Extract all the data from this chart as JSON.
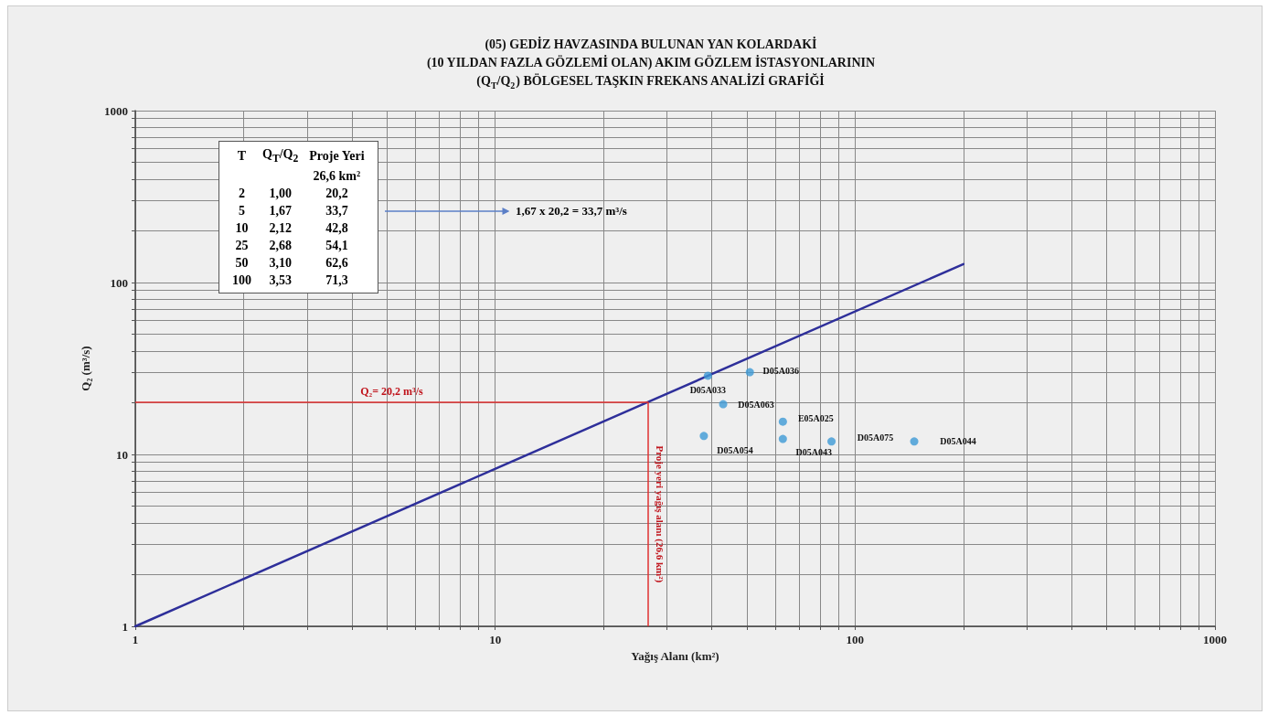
{
  "chart_data": {
    "type": "scatter",
    "title": "(05) GEDİZ HAVZASINDA BULUNAN YAN KOLARDAKİ\n(10 YILDAN FAZLA GÖZLEMİ OLAN) AKIM GÖZLEM İSTASYONLARININ\n(Q$_{T}$/Q$_{2}$) BÖLGESEL TAŞKIN FREKANS ANALİZİ GRAFİĞİ",
    "xlabel": "Yağış Alanı (km²)",
    "ylabel": "Q₂ (m³/s)",
    "log": "xy",
    "grid": true,
    "marker": "circle",
    "xlim": [
      1,
      1000
    ],
    "ylim": [
      1,
      1000
    ],
    "xticks": [
      1,
      {
        "value": 2,
        "label": null
      },
      {
        "value": 3,
        "label": null
      },
      {
        "value": 4,
        "label": null
      },
      {
        "value": 5,
        "label": null
      },
      {
        "value": 6,
        "label": null
      },
      {
        "value": 7,
        "label": null
      },
      {
        "value": 8,
        "label": null
      },
      {
        "value": 9,
        "label": null
      },
      10,
      {
        "value": 20,
        "label": null
      },
      {
        "value": 30,
        "label": null
      },
      {
        "value": 40,
        "label": null
      },
      {
        "value": 50,
        "label": null
      },
      {
        "value": 60,
        "label": null
      },
      {
        "value": 70,
        "label": null
      },
      {
        "value": 80,
        "label": null
      },
      {
        "value": 90,
        "label": null
      },
      100,
      {
        "value": 200,
        "label": null
      },
      {
        "value": 300,
        "label": null
      },
      {
        "value": 400,
        "label": null
      },
      {
        "value": 500,
        "label": null
      },
      {
        "value": 600,
        "label": null
      },
      {
        "value": 700,
        "label": null
      },
      {
        "value": 800,
        "label": null
      },
      {
        "value": 900,
        "label": null
      },
      1000
    ],
    "yticks": [
      1,
      {
        "value": 2,
        "label": null
      },
      {
        "value": 3,
        "label": null
      },
      {
        "value": 4,
        "label": null
      },
      {
        "value": 5,
        "label": null
      },
      {
        "value": 6,
        "label": null
      },
      {
        "value": 7,
        "label": null
      },
      {
        "value": 8,
        "label": null
      },
      {
        "value": 9,
        "label": null
      },
      10,
      {
        "value": 20,
        "label": null
      },
      {
        "value": 30,
        "label": null
      },
      {
        "value": 40,
        "label": null
      },
      {
        "value": 50,
        "label": null
      },
      {
        "value": 60,
        "label": null
      },
      {
        "value": 70,
        "label": null
      },
      {
        "value": 80,
        "label": null
      },
      {
        "value": 90,
        "label": null
      },
      100,
      {
        "value": 200,
        "label": null
      },
      {
        "value": 300,
        "label": null
      },
      {
        "value": 400,
        "label": null
      },
      {
        "value": 500,
        "label": null
      },
      {
        "value": 600,
        "label": null
      },
      {
        "value": 700,
        "label": null
      },
      {
        "value": 800,
        "label": null
      },
      {
        "value": 900,
        "label": null
      },
      1000
    ],
    "series": [
      {
        "type": "line",
        "color": "#2e2f9a",
        "marker": "none",
        "line_style": "solid",
        "x": [
          1,
          26.6,
          200
        ],
        "values": [
          1,
          20.2,
          128
        ]
      },
      {
        "color": "#3d9ad6",
        "x": [
          39,
          51,
          43,
          63,
          38,
          63,
          86,
          146
        ],
        "values": [
          28.7,
          30.1,
          19.6,
          15.5,
          12.8,
          12.3,
          11.9,
          11.9
        ]
      }
    ],
    "ref_lines": [
      {
        "axis": "y",
        "value": 20.2,
        "label": "Q₂= 20,2 m³/s",
        "color": "#e03030"
      },
      {
        "axis": "x",
        "value": 26.6,
        "label": "Proje yeri yağış alanı (26,6 km²)",
        "color": "#e03030"
      }
    ],
    "annotations": [
      {
        "text": "D05A033",
        "x": 39,
        "y": 28.7
      },
      {
        "text": "D05A036",
        "x": 51,
        "y": 30.1
      },
      {
        "text": "D05A063",
        "x": 43,
        "y": 19.6
      },
      {
        "text": "E05A025",
        "x": 63,
        "y": 15.5
      },
      {
        "text": "D05A054",
        "x": 38,
        "y": 12.8
      },
      {
        "text": "D05A043",
        "x": 63,
        "y": 12.3
      },
      {
        "text": "D05A075",
        "x": 86,
        "y": 11.9
      },
      {
        "text": "D05A044",
        "x": 146,
        "y": 11.9
      },
      "T",
      "Q$_{T}$/Q$_{2}$",
      "Proje Yeri",
      "26,6 km²",
      "2",
      "1,00",
      "20,2",
      "5",
      "1,67",
      "33,7",
      "10",
      "2,12",
      "42,8",
      "25",
      "2,68",
      "54,1",
      "50",
      "3,10",
      "62,6",
      "100",
      "3,53",
      "71,3",
      "1,67 x 20,2 = 33,7 m³/s"
    ]
  }
}
